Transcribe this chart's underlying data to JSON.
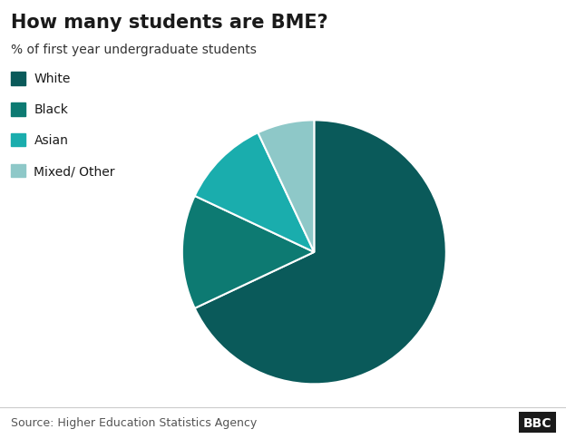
{
  "title": "How many students are BME?",
  "subtitle": "% of first year undergraduate students",
  "labels": [
    "White",
    "Black",
    "Asian",
    "Mixed/ Other"
  ],
  "values": [
    68.0,
    14.0,
    11.0,
    7.0
  ],
  "colors": [
    "#0a5a5a",
    "#0d7a72",
    "#1aadad",
    "#8ec8c8"
  ],
  "wedge_edge_color": "white",
  "wedge_edge_width": 1.5,
  "start_angle": 90,
  "counterclock": false,
  "source_text": "Source: Higher Education Statistics Agency",
  "bbc_text": "BBC",
  "background_color": "#ffffff",
  "title_fontsize": 15,
  "subtitle_fontsize": 10,
  "legend_fontsize": 10,
  "source_fontsize": 9
}
